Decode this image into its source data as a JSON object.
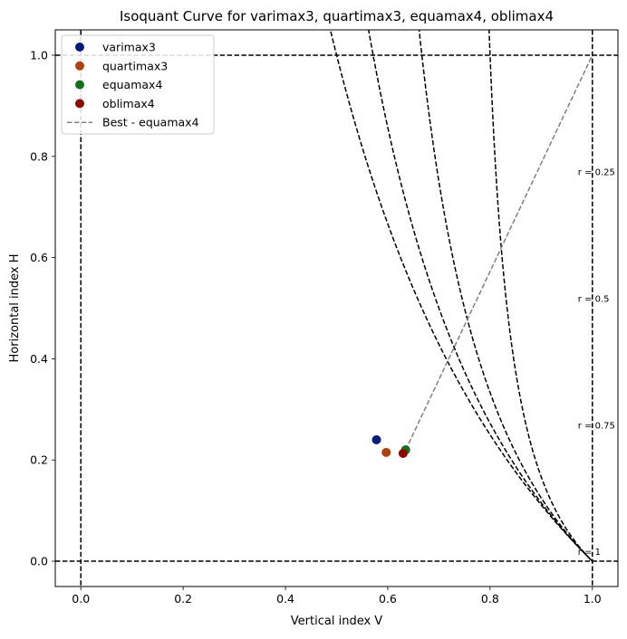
{
  "chart_data": {
    "type": "scatter",
    "title": "Isoquant Curve for varimax3, quartimax3, equamax4, oblimax4",
    "xlabel": "Vertical index V",
    "ylabel": "Horizontal index H",
    "xlim": [
      -0.05,
      1.05
    ],
    "ylim": [
      -0.05,
      1.05
    ],
    "xticks": [
      "0.0",
      "0.2",
      "0.4",
      "0.6",
      "0.8",
      "1.0"
    ],
    "yticks": [
      "0.0",
      "0.2",
      "0.4",
      "0.6",
      "0.8",
      "1.0"
    ],
    "grid": false,
    "legend_position": "top-left",
    "points": [
      {
        "name": "varimax3",
        "x": 0.578,
        "y": 0.24,
        "color": "#001c7f"
      },
      {
        "name": "quartimax3",
        "x": 0.597,
        "y": 0.215,
        "color": "#b1400d"
      },
      {
        "name": "equamax4",
        "x": 0.635,
        "y": 0.22,
        "color": "#12711c"
      },
      {
        "name": "oblimax4",
        "x": 0.63,
        "y": 0.213,
        "color": "#8c0800"
      }
    ],
    "best_line": {
      "label": "Best - equamax4",
      "from": [
        0.635,
        0.22
      ],
      "to": [
        1.0,
        1.0
      ],
      "color": "#808080"
    },
    "isoquants": [
      {
        "r": 0.25,
        "label": "r = 0.25"
      },
      {
        "r": 0.5,
        "label": "r = 0.5"
      },
      {
        "r": 0.75,
        "label": "r = 0.75"
      },
      {
        "r": 1,
        "label": "r = 1"
      }
    ],
    "reference_lines": {
      "vertical": [
        0,
        1
      ],
      "horizontal": [
        0,
        1
      ]
    }
  }
}
